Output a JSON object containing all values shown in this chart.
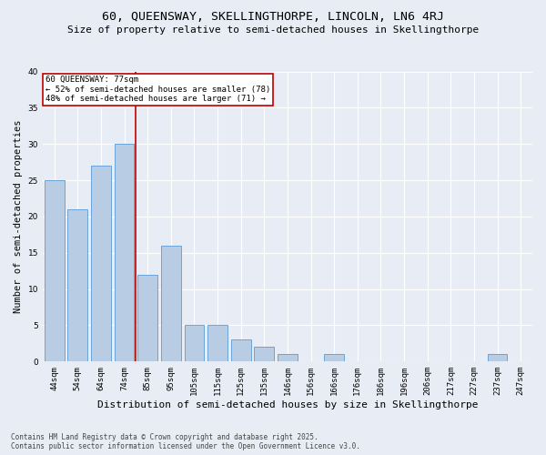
{
  "title": "60, QUEENSWAY, SKELLINGTHORPE, LINCOLN, LN6 4RJ",
  "subtitle": "Size of property relative to semi-detached houses in Skellingthorpe",
  "xlabel": "Distribution of semi-detached houses by size in Skellingthorpe",
  "ylabel": "Number of semi-detached properties",
  "categories": [
    "44sqm",
    "54sqm",
    "64sqm",
    "74sqm",
    "85sqm",
    "95sqm",
    "105sqm",
    "115sqm",
    "125sqm",
    "135sqm",
    "146sqm",
    "156sqm",
    "166sqm",
    "176sqm",
    "186sqm",
    "196sqm",
    "206sqm",
    "217sqm",
    "227sqm",
    "237sqm",
    "247sqm"
  ],
  "values": [
    25,
    21,
    27,
    30,
    12,
    16,
    5,
    5,
    3,
    2,
    1,
    0,
    1,
    0,
    0,
    0,
    0,
    0,
    0,
    1,
    0
  ],
  "bar_color": "#b8cce4",
  "bar_edge_color": "#5b9bd5",
  "vline_index": 3,
  "vline_color": "#c00000",
  "annotation_title": "60 QUEENSWAY: 77sqm",
  "annotation_line1": "← 52% of semi-detached houses are smaller (78)",
  "annotation_line2": "48% of semi-detached houses are larger (71) →",
  "annotation_box_color": "#ffffff",
  "annotation_box_edge": "#c00000",
  "ylim": [
    0,
    40
  ],
  "yticks": [
    0,
    5,
    10,
    15,
    20,
    25,
    30,
    35,
    40
  ],
  "background_color": "#e8edf5",
  "footer_line1": "Contains HM Land Registry data © Crown copyright and database right 2025.",
  "footer_line2": "Contains public sector information licensed under the Open Government Licence v3.0.",
  "title_fontsize": 9.5,
  "subtitle_fontsize": 8,
  "xlabel_fontsize": 8,
  "ylabel_fontsize": 7.5,
  "tick_fontsize": 6.5,
  "annotation_fontsize": 6.5,
  "footer_fontsize": 5.5
}
